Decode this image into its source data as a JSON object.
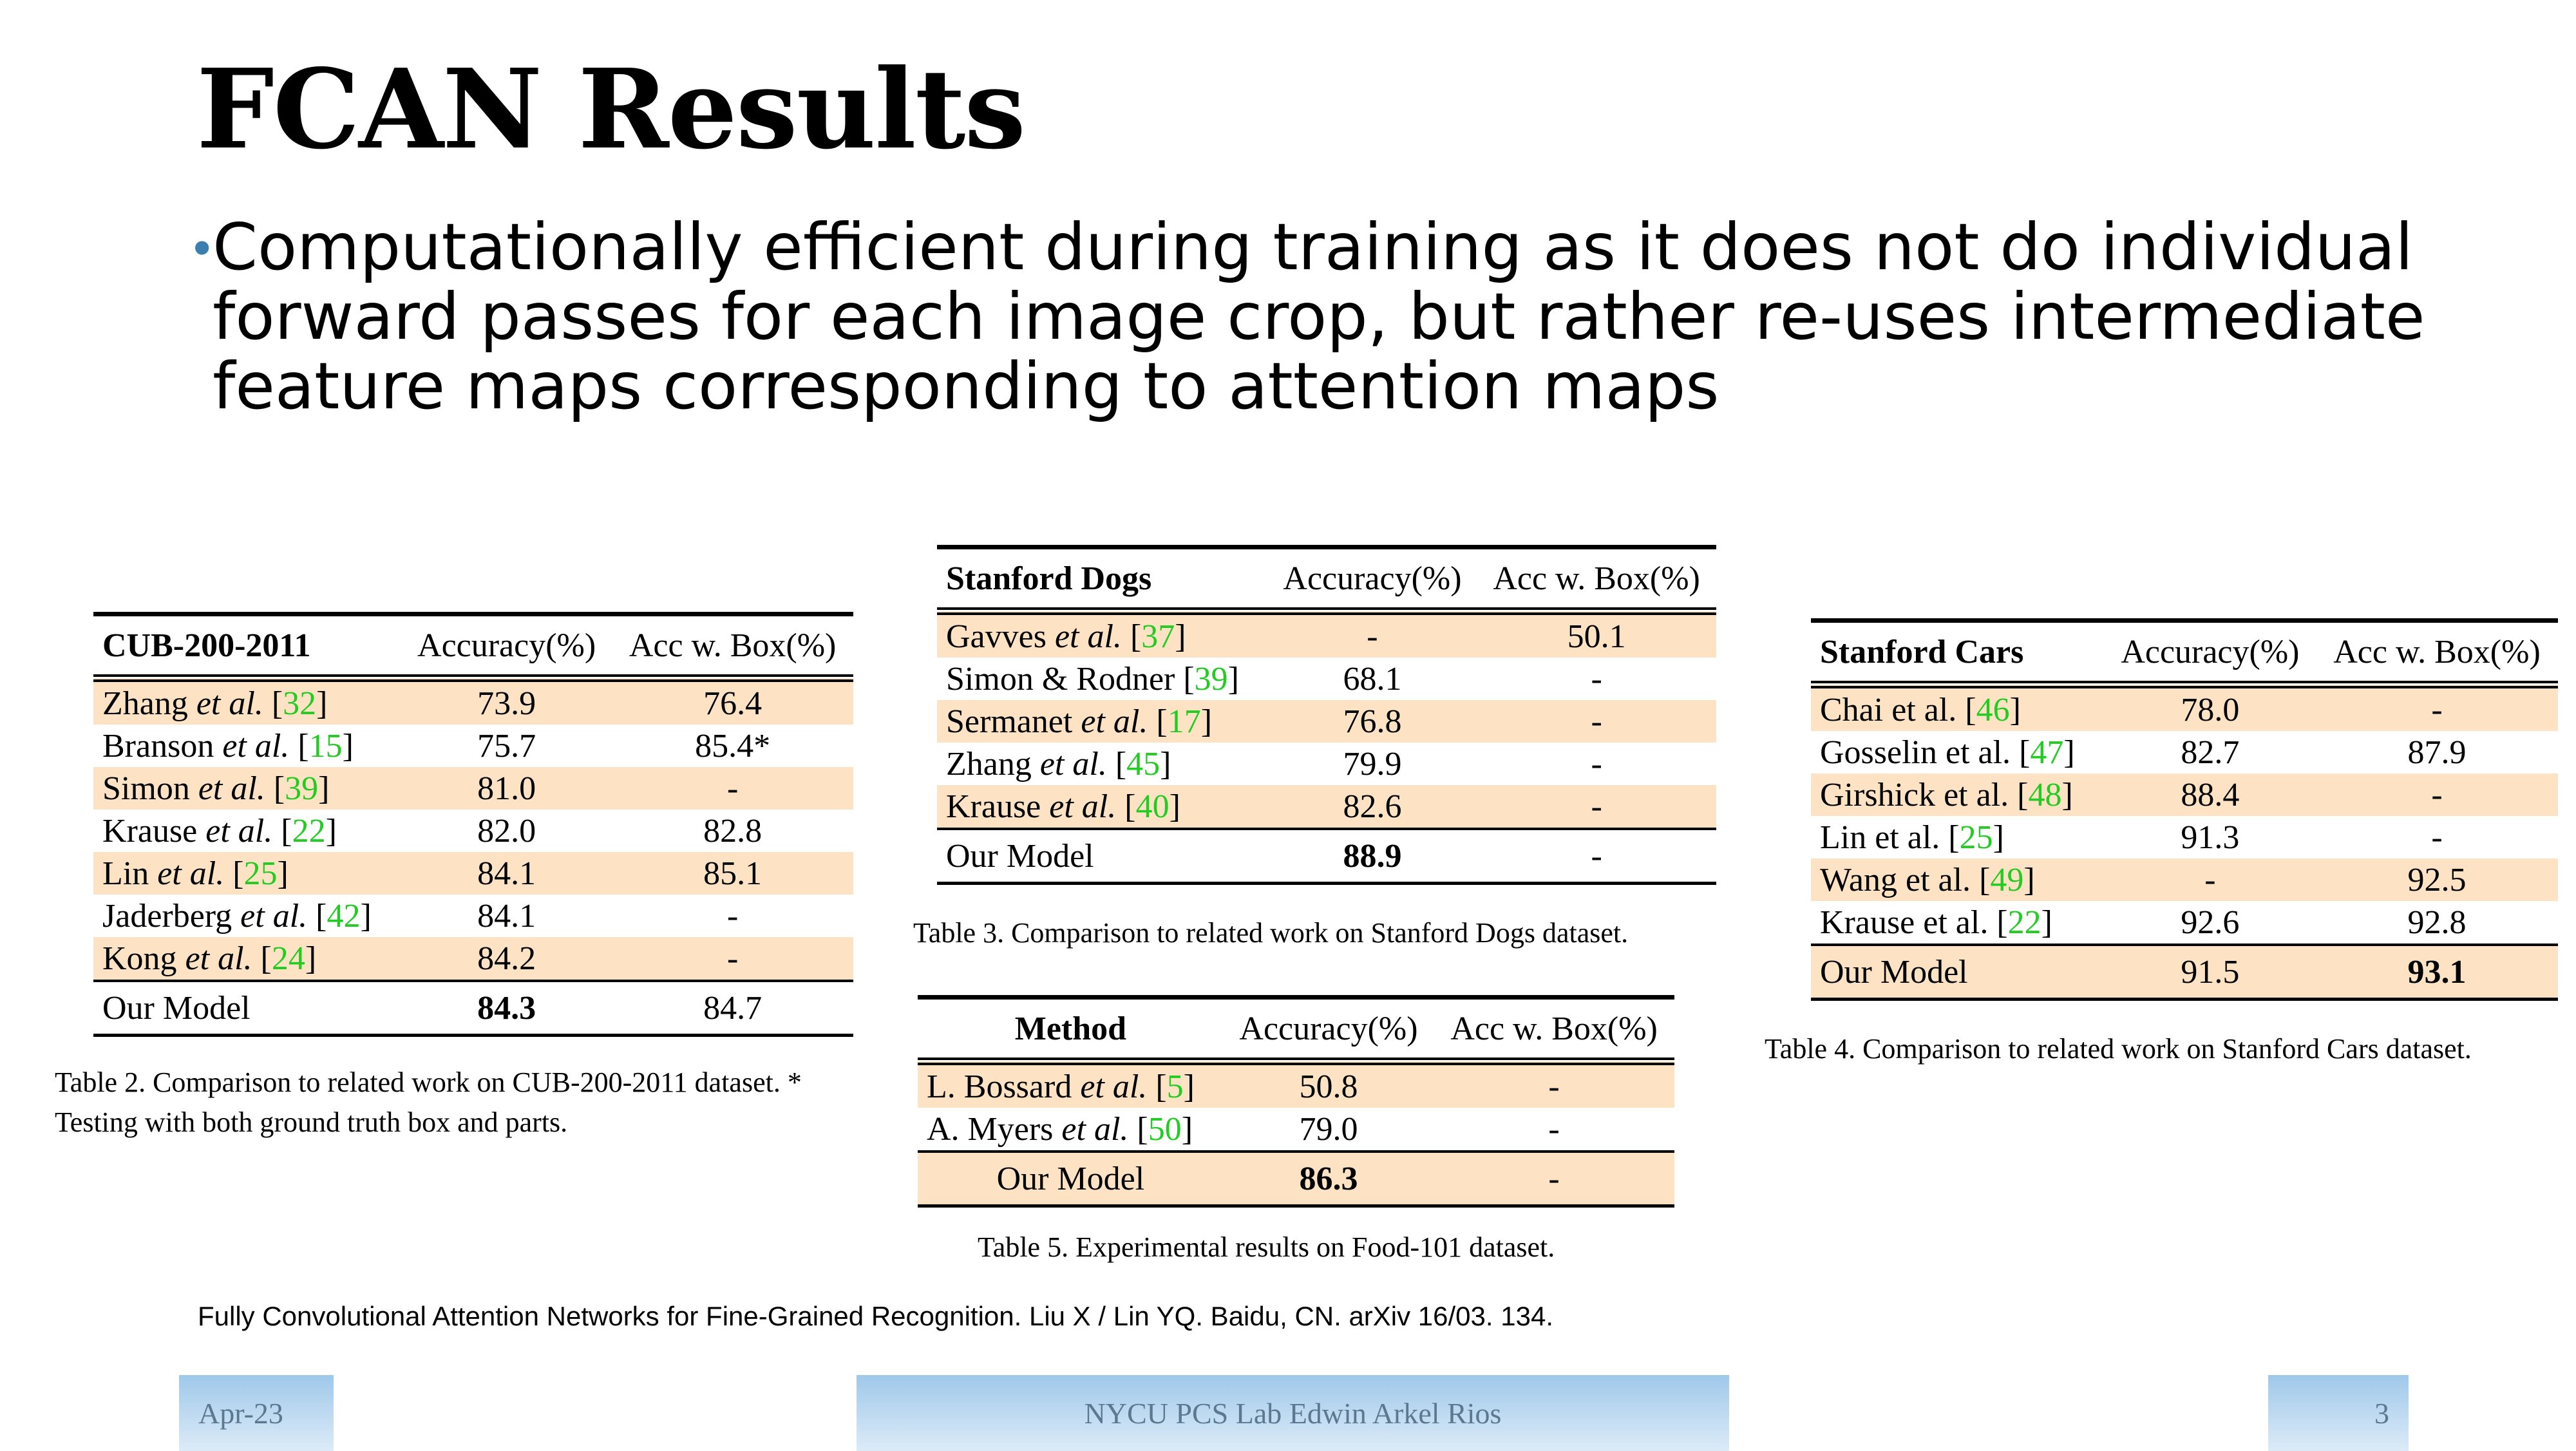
{
  "title": "FCAN Results",
  "bullet": "Computationally efficient during training as it does not do individual forward passes for each image crop, but rather re-uses intermediate feature maps corresponding to attention maps",
  "bullet_symbol": "•",
  "tables": {
    "cub": {
      "headers": [
        "CUB-200-2011",
        "Accuracy(%)",
        "Acc w. Box(%)"
      ],
      "rows": [
        {
          "name": "Zhang",
          "etal": "et al.",
          "ref": "32",
          "acc": "73.9",
          "box": "76.4"
        },
        {
          "name": "Branson",
          "etal": "et al.",
          "ref": "15",
          "acc": "75.7",
          "box": "85.4*"
        },
        {
          "name": "Simon",
          "etal": "et al.",
          "ref": "39",
          "acc": "81.0",
          "box": "-"
        },
        {
          "name": "Krause",
          "etal": "et al.",
          "ref": "22",
          "acc": "82.0",
          "box": "82.8"
        },
        {
          "name": "Lin",
          "etal": "et al.",
          "ref": "25",
          "acc": "84.1",
          "box": "85.1"
        },
        {
          "name": "Jaderberg",
          "etal": "et al.",
          "ref": "42",
          "acc": "84.1",
          "box": "-"
        },
        {
          "name": "Kong",
          "etal": "et al.",
          "ref": "24",
          "acc": "84.2",
          "box": "-"
        }
      ],
      "ours": {
        "name": "Our Model",
        "acc": "84.3",
        "box": "84.7"
      },
      "caption_line1": "Table 2. Comparison to related work on CUB-200-2011 dataset. *",
      "caption_line2": "Testing with both ground truth box and parts."
    },
    "dogs": {
      "headers": [
        "Stanford Dogs",
        "Accuracy(%)",
        "Acc w. Box(%)"
      ],
      "rows": [
        {
          "name": "Gavves",
          "etal": "et al.",
          "ref": "37",
          "acc": "-",
          "box": "50.1"
        },
        {
          "name": "Simon & Rodner",
          "etal": "",
          "ref": "39",
          "acc": "68.1",
          "box": "-"
        },
        {
          "name": "Sermanet",
          "etal": "et al.",
          "ref": "17",
          "acc": "76.8",
          "box": "-"
        },
        {
          "name": "Zhang",
          "etal": "et al.",
          "ref": "45",
          "acc": "79.9",
          "box": "-"
        },
        {
          "name": "Krause",
          "etal": "et al.",
          "ref": "40",
          "acc": "82.6",
          "box": "-"
        }
      ],
      "ours": {
        "name": "Our Model",
        "acc": "88.9",
        "box": "-"
      },
      "caption": "Table 3. Comparison to related work on Stanford Dogs dataset."
    },
    "food": {
      "headers": [
        "Method",
        "Accuracy(%)",
        "Acc w. Box(%)"
      ],
      "rows": [
        {
          "name": "L. Bossard",
          "etal": "et al.",
          "ref": "5",
          "acc": "50.8",
          "box": "-"
        },
        {
          "name": "A. Myers",
          "etal": "et al.",
          "ref": "50",
          "acc": "79.0",
          "box": "-"
        }
      ],
      "ours": {
        "name": "Our Model",
        "acc": "86.3",
        "box": "-"
      },
      "caption": "Table 5. Experimental results on Food-101 dataset."
    },
    "cars": {
      "headers": [
        "Stanford Cars",
        "Accuracy(%)",
        "Acc w. Box(%)"
      ],
      "rows": [
        {
          "name": "Chai et al.",
          "ref": "46",
          "acc": "78.0",
          "box": "-"
        },
        {
          "name": "Gosselin et al.",
          "ref": "47",
          "acc": "82.7",
          "box": "87.9"
        },
        {
          "name": "Girshick et al.",
          "ref": "48",
          "acc": "88.4",
          "box": "-"
        },
        {
          "name": "Lin et al.",
          "ref": "25",
          "acc": "91.3",
          "box": "-"
        },
        {
          "name": "Wang et al.",
          "ref": "49",
          "acc": "-",
          "box": "92.5"
        },
        {
          "name": "Krause et al.",
          "ref": "22",
          "acc": "92.6",
          "box": "92.8"
        }
      ],
      "ours": {
        "name": "Our Model",
        "acc": "91.5",
        "box": "93.1"
      },
      "caption": "Table 4. Comparison to related work on Stanford Cars dataset."
    }
  },
  "citation": "Fully Convolutional Attention Networks for Fine-Grained Recognition. Liu X / Lin YQ. Baidu, CN. arXiv 16/03. 134.",
  "footer": {
    "date": "Apr-23",
    "center": "NYCU PCS Lab Edwin Arkel Rios",
    "page": "3"
  },
  "colors": {
    "row_shade": "#fde3c4",
    "ref_green": "#22cc22",
    "bullet_blue": "#3b7fb0",
    "footer_gradient": "#9fc8ea"
  }
}
